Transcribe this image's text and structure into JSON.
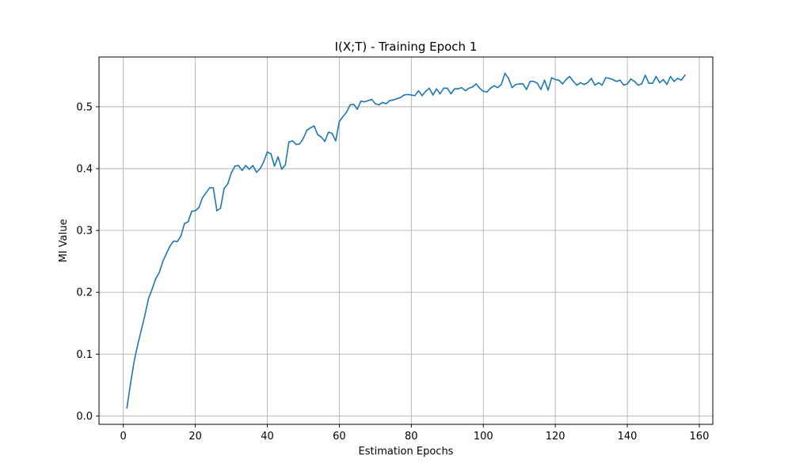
{
  "chart_data": {
    "type": "line",
    "title": "I(X;T) - Training Epoch 1",
    "xlabel": "Estimation Epochs",
    "ylabel": "MI Value",
    "xlim": [
      -6.75,
      163.75
    ],
    "ylim": [
      -0.0135,
      0.5805
    ],
    "x_ticks": [
      0,
      20,
      40,
      60,
      80,
      100,
      120,
      140,
      160
    ],
    "y_ticks": [
      0.0,
      0.1,
      0.2,
      0.3,
      0.4,
      0.5
    ],
    "y_tick_labels": [
      "0.0",
      "0.1",
      "0.2",
      "0.3",
      "0.4",
      "0.5"
    ],
    "grid": true,
    "colors": {
      "line": "#1f77b4",
      "grid": "#b0b0b0",
      "axes": "#000000"
    },
    "series": [
      {
        "x_start": 1,
        "x_step": 1,
        "values": [
          0.013,
          0.052,
          0.088,
          0.115,
          0.139,
          0.163,
          0.19,
          0.205,
          0.222,
          0.232,
          0.25,
          0.263,
          0.275,
          0.283,
          0.282,
          0.291,
          0.311,
          0.314,
          0.331,
          0.332,
          0.337,
          0.353,
          0.361,
          0.369,
          0.369,
          0.332,
          0.336,
          0.368,
          0.375,
          0.393,
          0.404,
          0.405,
          0.397,
          0.405,
          0.399,
          0.405,
          0.394,
          0.4,
          0.411,
          0.427,
          0.424,
          0.404,
          0.419,
          0.399,
          0.406,
          0.443,
          0.445,
          0.439,
          0.44,
          0.449,
          0.462,
          0.466,
          0.469,
          0.455,
          0.451,
          0.444,
          0.459,
          0.457,
          0.445,
          0.476,
          0.484,
          0.491,
          0.503,
          0.504,
          0.496,
          0.509,
          0.508,
          0.51,
          0.512,
          0.505,
          0.503,
          0.507,
          0.505,
          0.51,
          0.511,
          0.513,
          0.515,
          0.519,
          0.52,
          0.519,
          0.518,
          0.526,
          0.518,
          0.525,
          0.53,
          0.519,
          0.529,
          0.521,
          0.53,
          0.53,
          0.521,
          0.529,
          0.529,
          0.531,
          0.526,
          0.53,
          0.532,
          0.537,
          0.53,
          0.525,
          0.524,
          0.53,
          0.534,
          0.531,
          0.536,
          0.554,
          0.546,
          0.531,
          0.536,
          0.537,
          0.537,
          0.528,
          0.541,
          0.541,
          0.538,
          0.528,
          0.543,
          0.527,
          0.547,
          0.544,
          0.543,
          0.537,
          0.544,
          0.549,
          0.541,
          0.535,
          0.539,
          0.536,
          0.539,
          0.546,
          0.535,
          0.539,
          0.535,
          0.547,
          0.546,
          0.544,
          0.541,
          0.543,
          0.535,
          0.537,
          0.545,
          0.541,
          0.535,
          0.537,
          0.551,
          0.538,
          0.538,
          0.549,
          0.539,
          0.544,
          0.536,
          0.549,
          0.541,
          0.546,
          0.543,
          0.551
        ]
      }
    ]
  }
}
